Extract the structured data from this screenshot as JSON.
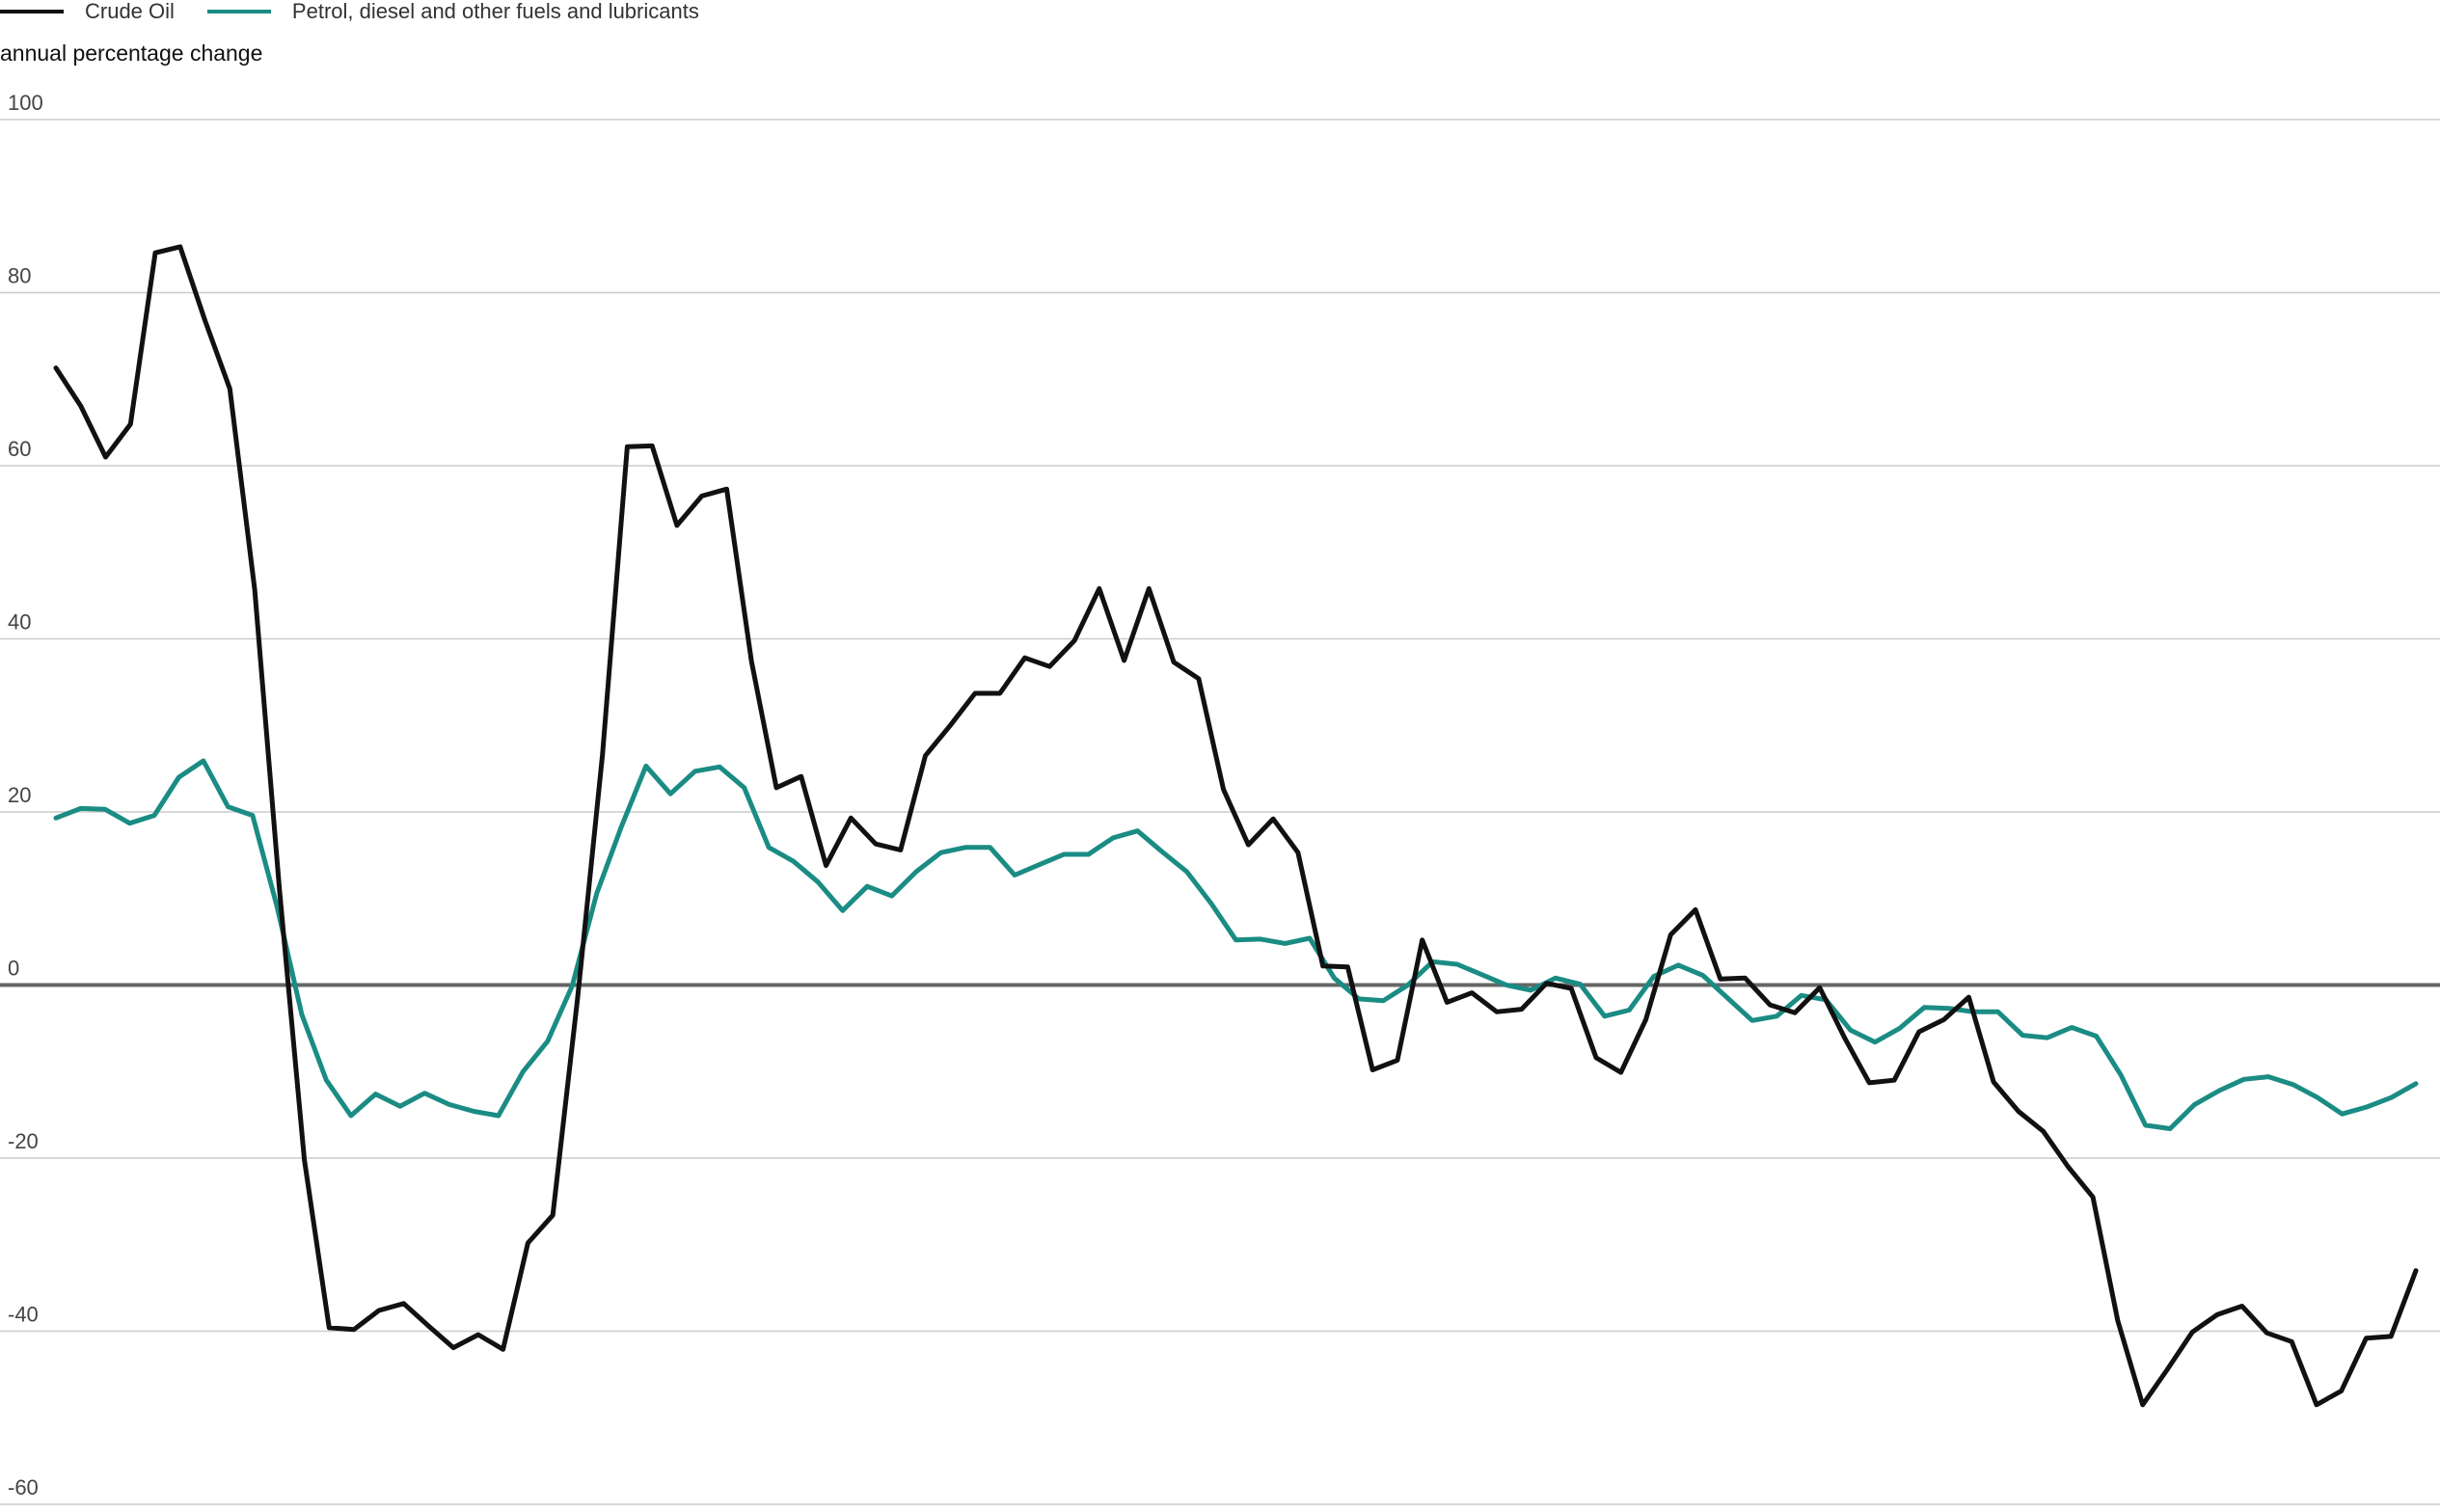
{
  "chart_data": {
    "type": "line",
    "ylabel": "annual percentage change",
    "ylim": [
      -60,
      100
    ],
    "yticks": [
      100,
      80,
      60,
      40,
      20,
      0,
      -20,
      -40,
      -60
    ],
    "ytick_labels": [
      "100",
      "80",
      "60",
      "40",
      "20",
      "0",
      "-20",
      "-40",
      "-60"
    ],
    "grid": true,
    "legend_position": "top-left",
    "series": [
      {
        "name": "Crude Oil",
        "color": "#111111",
        "values": [
          71.3,
          66.9,
          61.0,
          64.8,
          84.6,
          85.3,
          76.8,
          68.9,
          45.7,
          11.0,
          -20.2,
          -39.6,
          -39.8,
          -37.6,
          -36.8,
          -39.4,
          -41.9,
          -40.4,
          -42.1,
          -29.8,
          -26.6,
          -1.5,
          26.6,
          62.2,
          62.3,
          53.1,
          56.5,
          57.3,
          37.4,
          22.8,
          24.1,
          13.8,
          19.3,
          16.3,
          15.6,
          26.5,
          30.0,
          33.7,
          33.7,
          37.8,
          36.8,
          39.8,
          45.8,
          37.5,
          45.8,
          37.3,
          35.4,
          22.6,
          16.2,
          19.2,
          15.3,
          2.2,
          2.1,
          -9.8,
          -8.7,
          5.2,
          -2.0,
          -0.9,
          -3.1,
          -2.8,
          0.2,
          -0.4,
          -8.4,
          -10.1,
          -4.0,
          5.8,
          8.7,
          0.7,
          0.8,
          -2.3,
          -3.2,
          -0.3,
          -6.1,
          -11.3,
          -11.0,
          -5.4,
          -4.0,
          -1.4,
          -11.2,
          -14.6,
          -16.9,
          -21.0,
          -24.5,
          -38.8,
          -48.5,
          -44.4,
          -40.1,
          -38.1,
          -37.1,
          -40.2,
          -41.2,
          -48.5,
          -46.9,
          -40.8,
          -40.6,
          -33.0
        ]
      },
      {
        "name": "Petrol, diesel and other fuels and lubricants",
        "color": "#1a8c84",
        "values": [
          19.3,
          20.4,
          20.3,
          18.7,
          19.6,
          24.0,
          25.9,
          20.6,
          19.6,
          9.0,
          -3.4,
          -11.0,
          -15.1,
          -12.6,
          -14.0,
          -12.5,
          -13.8,
          -14.6,
          -15.1,
          -10.0,
          -6.5,
          -0.1,
          10.6,
          18.3,
          25.3,
          22.1,
          24.7,
          25.2,
          22.8,
          15.9,
          14.3,
          11.9,
          8.6,
          11.4,
          10.3,
          13.1,
          15.3,
          15.9,
          15.9,
          12.7,
          13.9,
          15.1,
          15.1,
          17.0,
          17.8,
          15.4,
          13.1,
          9.4,
          5.2,
          5.3,
          4.8,
          5.4,
          0.8,
          -1.6,
          -1.8,
          0.0,
          2.7,
          2.4,
          1.2,
          0.0,
          -0.6,
          0.8,
          0.1,
          -3.6,
          -2.9,
          1.0,
          2.3,
          1.1,
          -1.5,
          -4.1,
          -3.6,
          -1.2,
          -1.7,
          -5.2,
          -6.6,
          -5.0,
          -2.6,
          -2.7,
          -3.1,
          -3.1,
          -5.8,
          -6.1,
          -4.9,
          -5.9,
          -10.4,
          -16.2,
          -16.6,
          -13.8,
          -12.2,
          -10.9,
          -10.6,
          -11.5,
          -13.0,
          -14.9,
          -14.1,
          -13.0,
          -11.4
        ]
      }
    ]
  }
}
